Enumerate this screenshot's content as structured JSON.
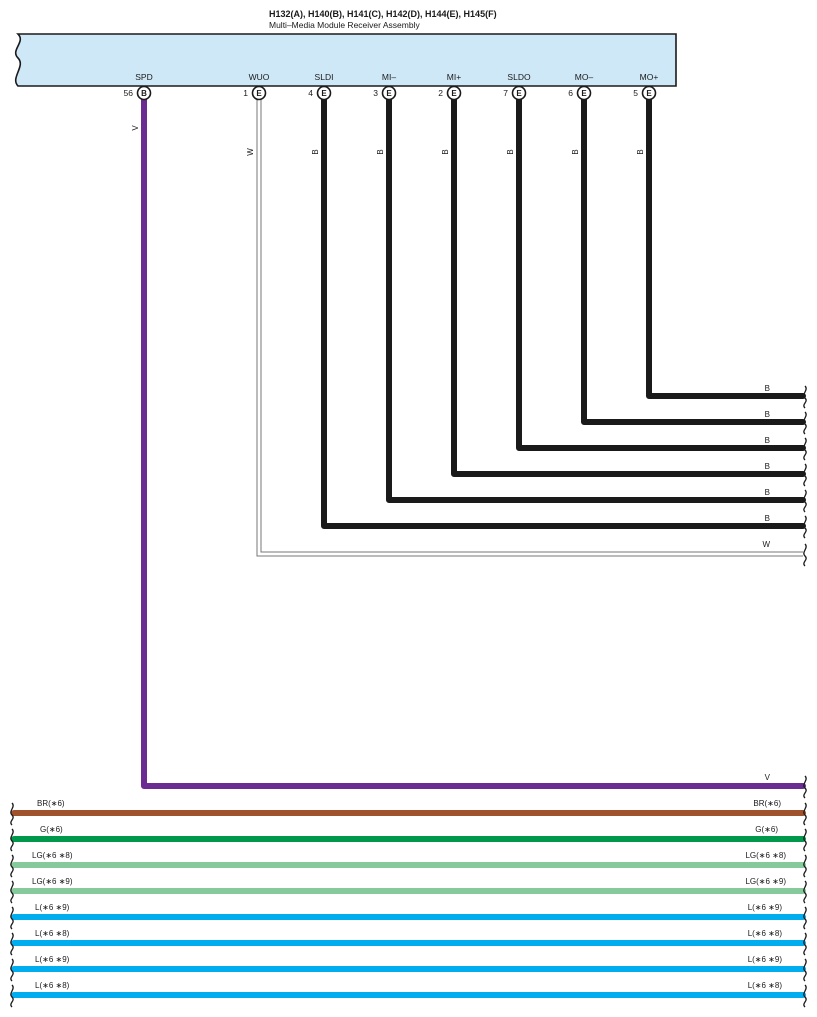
{
  "header": {
    "connectors": "H132(A), H140(B), H141(C), H142(D), H144(E), H145(F)",
    "component": "Multi–Media Module Receiver Assembly"
  },
  "pins": [
    {
      "name": "SPD",
      "number": "56",
      "connector": "B",
      "wire": "V",
      "color": "#6a2c91"
    },
    {
      "name": "WUO",
      "number": "1",
      "connector": "E",
      "wire": "W",
      "color": "#ffffff"
    },
    {
      "name": "SLDI",
      "number": "4",
      "connector": "E",
      "wire": "B",
      "color": "#1a1a1a"
    },
    {
      "name": "MI–",
      "number": "3",
      "connector": "E",
      "wire": "B",
      "color": "#1a1a1a"
    },
    {
      "name": "MI+",
      "number": "2",
      "connector": "E",
      "wire": "B",
      "color": "#1a1a1a"
    },
    {
      "name": "SLDO",
      "number": "7",
      "connector": "E",
      "wire": "B",
      "color": "#1a1a1a"
    },
    {
      "name": "MO–",
      "number": "6",
      "connector": "E",
      "wire": "B",
      "color": "#1a1a1a"
    },
    {
      "name": "MO+",
      "number": "5",
      "connector": "E",
      "wire": "B",
      "color": "#1a1a1a"
    }
  ],
  "exit_labels": [
    "B",
    "B",
    "B",
    "B",
    "B",
    "B",
    "W",
    "V"
  ],
  "bus_wires": [
    {
      "label": "BR(∗6)",
      "color": "#a0522d"
    },
    {
      "label": "G(∗6)",
      "color": "#00994c"
    },
    {
      "label": "LG(∗6 ∗8)",
      "color": "#86c99a"
    },
    {
      "label": "LG(∗6 ∗9)",
      "color": "#86c99a"
    },
    {
      "label": "L(∗6 ∗9)",
      "color": "#00aeef"
    },
    {
      "label": "L(∗6 ∗8)",
      "color": "#00aeef"
    },
    {
      "label": "L(∗6 ∗9)",
      "color": "#00aeef"
    },
    {
      "label": "L(∗6 ∗8)",
      "color": "#00aeef"
    }
  ],
  "colors": {
    "module_fill": "#cfe8f7",
    "outline": "#1a1a1a"
  }
}
